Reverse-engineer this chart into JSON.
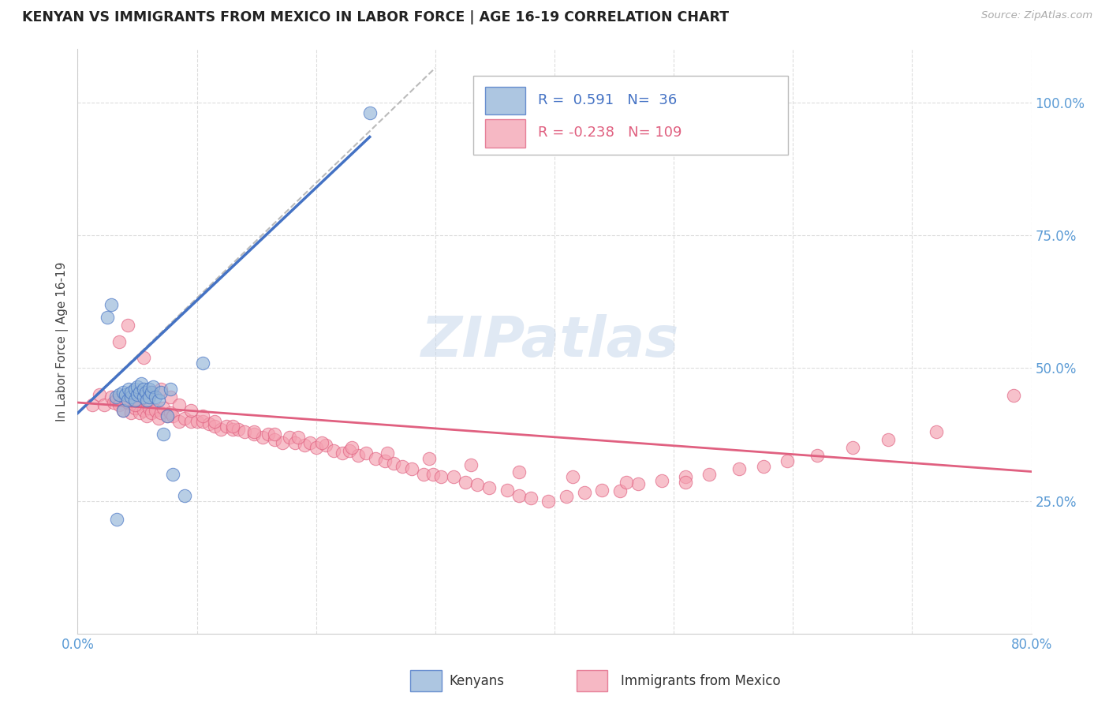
{
  "title": "KENYAN VS IMMIGRANTS FROM MEXICO IN LABOR FORCE | AGE 16-19 CORRELATION CHART",
  "source": "Source: ZipAtlas.com",
  "ylabel": "In Labor Force | Age 16-19",
  "xlim": [
    0.0,
    0.8
  ],
  "ylim": [
    0.0,
    1.1
  ],
  "xtick_positions": [
    0.0,
    0.1,
    0.2,
    0.3,
    0.4,
    0.5,
    0.6,
    0.7,
    0.8
  ],
  "xticklabels": [
    "0.0%",
    "",
    "",
    "",
    "",
    "",
    "",
    "",
    "80.0%"
  ],
  "yticks_right": [
    0.25,
    0.5,
    0.75,
    1.0
  ],
  "ytick_right_labels": [
    "25.0%",
    "50.0%",
    "75.0%",
    "100.0%"
  ],
  "legend_blue_r": "0.591",
  "legend_blue_n": "36",
  "legend_pink_r": "-0.238",
  "legend_pink_n": "109",
  "blue_color": "#92B4D8",
  "pink_color": "#F4A0B0",
  "blue_line_color": "#4472C4",
  "pink_line_color": "#E06080",
  "dash_color": "#BBBBBB",
  "grid_color": "#DDDDDD",
  "watermark_color": "#C8D8EC",
  "watermark_text": "ZIPatlas",
  "tick_label_color": "#5B9BD5",
  "blue_line_x0": 0.0,
  "blue_line_y0": 0.415,
  "blue_line_x1": 0.245,
  "blue_line_y1": 0.935,
  "dash_line_x0": 0.0,
  "dash_line_y0": 0.415,
  "dash_line_x1": 0.3,
  "dash_line_y1": 1.065,
  "pink_line_x0": 0.0,
  "pink_line_y0": 0.435,
  "pink_line_x1": 0.8,
  "pink_line_y1": 0.305,
  "blue_x": [
    0.025,
    0.028,
    0.032,
    0.035,
    0.038,
    0.038,
    0.04,
    0.042,
    0.043,
    0.045,
    0.045,
    0.048,
    0.048,
    0.05,
    0.05,
    0.052,
    0.053,
    0.055,
    0.055,
    0.057,
    0.058,
    0.06,
    0.06,
    0.062,
    0.063,
    0.065,
    0.068,
    0.07,
    0.072,
    0.075,
    0.078,
    0.08,
    0.09,
    0.105,
    0.245,
    0.033
  ],
  "blue_y": [
    0.595,
    0.62,
    0.445,
    0.45,
    0.455,
    0.42,
    0.45,
    0.44,
    0.46,
    0.445,
    0.455,
    0.44,
    0.46,
    0.45,
    0.465,
    0.455,
    0.47,
    0.445,
    0.46,
    0.455,
    0.44,
    0.46,
    0.445,
    0.455,
    0.465,
    0.445,
    0.44,
    0.455,
    0.375,
    0.41,
    0.46,
    0.3,
    0.26,
    0.51,
    0.98,
    0.215
  ],
  "pink_x": [
    0.012,
    0.018,
    0.022,
    0.028,
    0.03,
    0.032,
    0.035,
    0.038,
    0.04,
    0.042,
    0.045,
    0.048,
    0.05,
    0.052,
    0.055,
    0.058,
    0.06,
    0.062,
    0.065,
    0.068,
    0.07,
    0.072,
    0.075,
    0.078,
    0.08,
    0.085,
    0.09,
    0.095,
    0.1,
    0.105,
    0.11,
    0.115,
    0.12,
    0.125,
    0.13,
    0.135,
    0.14,
    0.148,
    0.155,
    0.16,
    0.165,
    0.172,
    0.178,
    0.182,
    0.19,
    0.195,
    0.2,
    0.208,
    0.215,
    0.222,
    0.228,
    0.235,
    0.242,
    0.25,
    0.258,
    0.265,
    0.272,
    0.28,
    0.29,
    0.298,
    0.305,
    0.315,
    0.325,
    0.335,
    0.345,
    0.36,
    0.37,
    0.38,
    0.395,
    0.41,
    0.425,
    0.44,
    0.455,
    0.47,
    0.49,
    0.51,
    0.53,
    0.555,
    0.575,
    0.595,
    0.62,
    0.65,
    0.68,
    0.72,
    0.785,
    0.035,
    0.042,
    0.048,
    0.055,
    0.062,
    0.07,
    0.078,
    0.085,
    0.095,
    0.105,
    0.115,
    0.13,
    0.148,
    0.165,
    0.185,
    0.205,
    0.23,
    0.26,
    0.295,
    0.33,
    0.37,
    0.415,
    0.46,
    0.51
  ],
  "pink_y": [
    0.43,
    0.45,
    0.43,
    0.445,
    0.435,
    0.44,
    0.43,
    0.42,
    0.44,
    0.435,
    0.415,
    0.425,
    0.43,
    0.415,
    0.42,
    0.41,
    0.425,
    0.415,
    0.42,
    0.405,
    0.415,
    0.425,
    0.41,
    0.415,
    0.41,
    0.4,
    0.405,
    0.4,
    0.4,
    0.4,
    0.395,
    0.39,
    0.385,
    0.39,
    0.385,
    0.385,
    0.38,
    0.375,
    0.37,
    0.375,
    0.365,
    0.36,
    0.37,
    0.36,
    0.355,
    0.36,
    0.35,
    0.355,
    0.345,
    0.34,
    0.345,
    0.335,
    0.34,
    0.33,
    0.325,
    0.32,
    0.315,
    0.31,
    0.3,
    0.3,
    0.295,
    0.295,
    0.285,
    0.28,
    0.275,
    0.27,
    0.26,
    0.255,
    0.25,
    0.258,
    0.265,
    0.27,
    0.268,
    0.282,
    0.288,
    0.295,
    0.3,
    0.31,
    0.315,
    0.325,
    0.335,
    0.35,
    0.365,
    0.38,
    0.448,
    0.55,
    0.58,
    0.43,
    0.52,
    0.455,
    0.46,
    0.445,
    0.43,
    0.42,
    0.41,
    0.4,
    0.39,
    0.38,
    0.375,
    0.37,
    0.36,
    0.35,
    0.34,
    0.33,
    0.318,
    0.305,
    0.295,
    0.285,
    0.285
  ]
}
